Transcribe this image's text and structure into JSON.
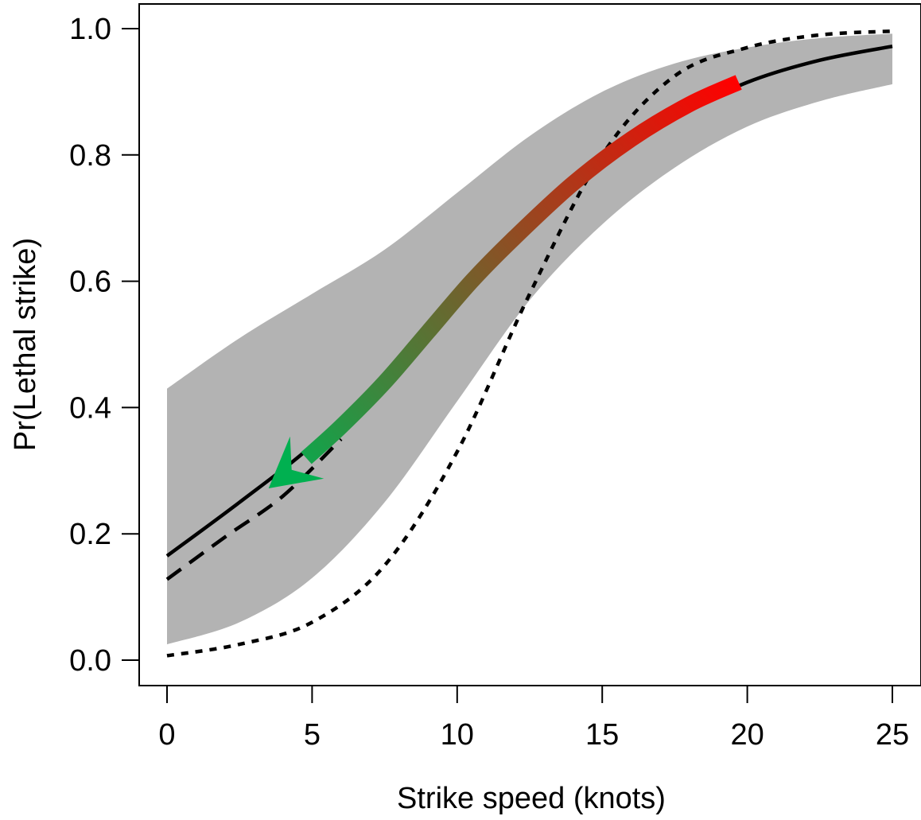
{
  "chart_data": {
    "type": "line",
    "title": "",
    "xlabel": "Strike speed (knots)",
    "ylabel": "Pr(Lethal strike)",
    "xlim": [
      0,
      25
    ],
    "ylim": [
      0,
      1
    ],
    "xticks": [
      0,
      5,
      10,
      15,
      20,
      25
    ],
    "yticks": [
      0.0,
      0.2,
      0.4,
      0.6,
      0.8,
      1.0
    ],
    "xtick_labels": [
      "0",
      "5",
      "10",
      "15",
      "20",
      "25"
    ],
    "ytick_labels": [
      "0.0",
      "0.2",
      "0.4",
      "0.6",
      "0.8",
      "1.0"
    ],
    "grid": false,
    "confidence_band": {
      "color": "#b3b3b3",
      "x": [
        0,
        2.5,
        5,
        7.5,
        10,
        12.5,
        15,
        17.5,
        20,
        22.5,
        25
      ],
      "lower": [
        0.025,
        0.06,
        0.13,
        0.25,
        0.41,
        0.57,
        0.69,
        0.78,
        0.845,
        0.885,
        0.912
      ],
      "upper": [
        0.43,
        0.51,
        0.58,
        0.65,
        0.74,
        0.83,
        0.9,
        0.945,
        0.97,
        0.985,
        0.992
      ]
    },
    "series": [
      {
        "style": "solid",
        "color": "#000000",
        "x": [
          0,
          2.5,
          5,
          7.5,
          10,
          12.5,
          15,
          17.5,
          20,
          22.5,
          25
        ],
        "y": [
          0.165,
          0.25,
          0.34,
          0.45,
          0.58,
          0.7,
          0.79,
          0.86,
          0.915,
          0.95,
          0.972
        ]
      },
      {
        "style": "dashed",
        "color": "#000000",
        "x": [
          0,
          2,
          4,
          6
        ],
        "y": [
          0.128,
          0.195,
          0.26,
          0.35
        ]
      },
      {
        "style": "dotted",
        "color": "#000000",
        "x": [
          0,
          2.5,
          5,
          7.5,
          10,
          12.5,
          15,
          17.5,
          20,
          22.5,
          25
        ],
        "y": [
          0.007,
          0.025,
          0.06,
          0.15,
          0.33,
          0.58,
          0.8,
          0.925,
          0.97,
          0.99,
          0.996
        ]
      }
    ],
    "arrow": {
      "color_start": "#ff0000",
      "color_end": "#00b050",
      "x": [
        19.7,
        18,
        16,
        14,
        12,
        10.5,
        9,
        7.5,
        6,
        4.8
      ],
      "y": [
        0.915,
        0.88,
        0.825,
        0.755,
        0.67,
        0.6,
        0.52,
        0.44,
        0.37,
        0.32
      ],
      "head_tip": [
        3.5,
        0.272
      ]
    }
  }
}
